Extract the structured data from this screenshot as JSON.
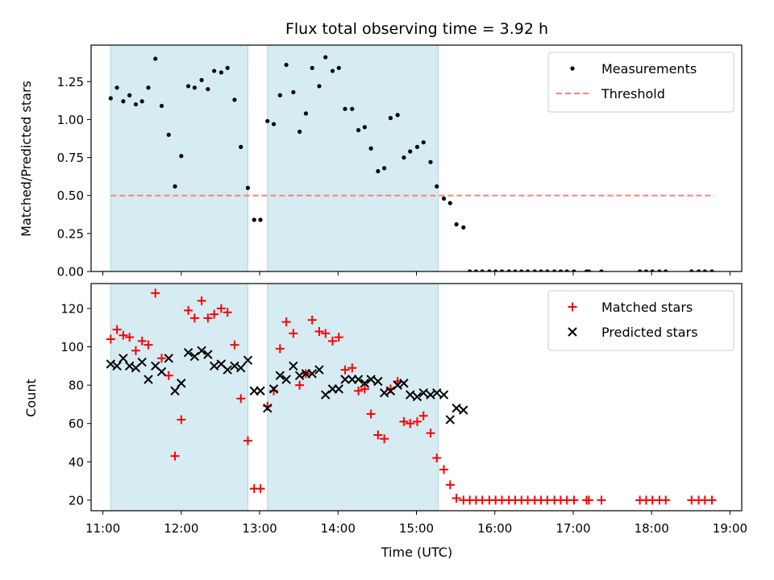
{
  "title": "Flux total observing time = 3.92 h",
  "xlabel": "Time (UTC)",
  "x_ticks": [
    "11:00",
    "12:00",
    "13:00",
    "14:00",
    "15:00",
    "16:00",
    "17:00",
    "18:00",
    "19:00"
  ],
  "chart_data": [
    {
      "type": "scatter",
      "ylabel": "Matched/Predicted stars",
      "xlim": [
        10.85,
        19.15
      ],
      "ylim": [
        0.0,
        1.49
      ],
      "y_ticks": [
        "0.00",
        "0.25",
        "0.50",
        "0.75",
        "1.00",
        "1.25"
      ],
      "grid": false,
      "legend_position": "top-right",
      "highlight_spans": [
        [
          11.1,
          12.85
        ],
        [
          13.1,
          15.28
        ]
      ],
      "threshold": {
        "name": "Threshold",
        "value": 0.5,
        "x_range": [
          11.1,
          18.8
        ],
        "color": "#ff7f7f"
      },
      "series": [
        {
          "name": "Measurements",
          "color": "#000000",
          "x": [
            11.1,
            11.18,
            11.26,
            11.34,
            11.42,
            11.5,
            11.58,
            11.67,
            11.75,
            11.84,
            11.92,
            12.0,
            12.09,
            12.17,
            12.26,
            12.34,
            12.42,
            12.51,
            12.59,
            12.68,
            12.76,
            12.85,
            12.93,
            13.01,
            13.1,
            13.18,
            13.26,
            13.34,
            13.43,
            13.51,
            13.59,
            13.67,
            13.76,
            13.84,
            13.93,
            14.01,
            14.09,
            14.18,
            14.26,
            14.34,
            14.42,
            14.51,
            14.59,
            14.67,
            14.76,
            14.84,
            14.92,
            15.01,
            15.09,
            15.18,
            15.26,
            15.35,
            15.43,
            15.51,
            15.6,
            15.68,
            15.76,
            15.84,
            15.93,
            16.01,
            16.09,
            16.18,
            16.26,
            16.34,
            16.42,
            16.51,
            16.59,
            16.67,
            16.76,
            16.84,
            16.92,
            17.01,
            17.17,
            17.2,
            17.36,
            17.85,
            17.93,
            18.01,
            18.1,
            18.18,
            18.51,
            18.6,
            18.68,
            18.77
          ],
          "y": [
            1.14,
            1.21,
            1.12,
            1.16,
            1.1,
            1.12,
            1.21,
            1.4,
            1.09,
            0.9,
            0.56,
            0.76,
            1.22,
            1.21,
            1.26,
            1.2,
            1.32,
            1.31,
            1.34,
            1.13,
            0.82,
            0.55,
            0.34,
            0.34,
            0.99,
            0.97,
            1.16,
            1.36,
            1.18,
            0.92,
            1.04,
            1.34,
            1.22,
            1.41,
            1.32,
            1.34,
            1.07,
            1.07,
            0.93,
            0.95,
            0.81,
            0.66,
            0.68,
            1.01,
            1.03,
            0.75,
            0.79,
            0.82,
            0.85,
            0.72,
            0.56,
            0.48,
            0.45,
            0.31,
            0.29,
            0,
            0,
            0,
            0,
            0,
            0,
            0,
            0,
            0,
            0,
            0,
            0,
            0,
            0,
            0,
            0,
            0,
            0,
            0,
            0,
            0,
            0,
            0,
            0,
            0,
            0,
            0,
            0,
            0
          ]
        }
      ]
    },
    {
      "type": "scatter",
      "ylabel": "Count",
      "xlabel": "Time (UTC)",
      "xlim": [
        10.85,
        19.15
      ],
      "ylim": [
        14.5,
        133
      ],
      "y_ticks": [
        "20",
        "40",
        "60",
        "80",
        "100",
        "120"
      ],
      "grid": false,
      "legend_position": "top-right",
      "highlight_spans": [
        [
          11.1,
          12.85
        ],
        [
          13.1,
          15.28
        ]
      ],
      "series": [
        {
          "name": "Matched stars",
          "color": "#ff0000",
          "marker": "+",
          "x": [
            11.1,
            11.18,
            11.26,
            11.34,
            11.42,
            11.5,
            11.58,
            11.67,
            11.75,
            11.84,
            11.92,
            12.0,
            12.09,
            12.17,
            12.26,
            12.34,
            12.42,
            12.51,
            12.59,
            12.68,
            12.76,
            12.85,
            12.93,
            13.01,
            13.1,
            13.18,
            13.26,
            13.34,
            13.43,
            13.51,
            13.59,
            13.67,
            13.76,
            13.84,
            13.93,
            14.01,
            14.09,
            14.18,
            14.26,
            14.34,
            14.42,
            14.51,
            14.59,
            14.67,
            14.76,
            14.84,
            14.92,
            15.01,
            15.09,
            15.18,
            15.26,
            15.35,
            15.43,
            15.51,
            15.6,
            15.68,
            15.76,
            15.84,
            15.93,
            16.01,
            16.09,
            16.18,
            16.26,
            16.34,
            16.42,
            16.51,
            16.59,
            16.67,
            16.76,
            16.84,
            16.92,
            17.01,
            17.17,
            17.2,
            17.36,
            17.85,
            17.93,
            18.01,
            18.1,
            18.18,
            18.51,
            18.6,
            18.68,
            18.77
          ],
          "y": [
            104,
            109,
            106,
            105,
            98,
            103,
            101,
            128,
            94,
            85,
            43,
            62,
            119,
            115,
            124,
            115,
            117,
            120,
            118,
            101,
            73,
            51,
            26,
            26,
            69,
            77,
            99,
            113,
            107,
            80,
            86,
            114,
            108,
            107,
            103,
            105,
            88,
            89,
            77,
            78,
            65,
            54,
            52,
            78,
            82,
            61,
            60,
            61,
            64,
            55,
            42,
            36,
            28,
            21,
            20,
            20,
            20,
            20,
            20,
            20,
            20,
            20,
            20,
            20,
            20,
            20,
            20,
            20,
            20,
            20,
            20,
            20,
            20,
            20,
            20,
            20,
            20,
            20,
            20,
            20,
            20,
            20,
            20,
            20
          ]
        },
        {
          "name": "Predicted stars",
          "color": "#000000",
          "marker": "x",
          "x": [
            11.1,
            11.18,
            11.26,
            11.34,
            11.42,
            11.5,
            11.58,
            11.67,
            11.75,
            11.84,
            11.92,
            12.0,
            12.09,
            12.17,
            12.26,
            12.34,
            12.42,
            12.51,
            12.59,
            12.68,
            12.76,
            12.85,
            12.93,
            13.01,
            13.1,
            13.18,
            13.26,
            13.34,
            13.43,
            13.51,
            13.59,
            13.67,
            13.76,
            13.84,
            13.93,
            14.01,
            14.09,
            14.18,
            14.26,
            14.34,
            14.42,
            14.51,
            14.59,
            14.67,
            14.76,
            14.84,
            14.92,
            15.01,
            15.09,
            15.18,
            15.26,
            15.35,
            15.43,
            15.51,
            15.6
          ],
          "y": [
            91,
            90,
            94,
            90,
            89,
            92,
            83,
            90,
            87,
            94,
            77,
            81,
            97,
            95,
            98,
            96,
            90,
            91,
            88,
            90,
            89,
            93,
            77,
            77,
            68,
            78,
            85,
            83,
            90,
            85,
            86,
            86,
            88,
            75,
            78,
            78,
            83,
            83,
            83,
            81,
            83,
            82,
            76,
            77,
            80,
            81,
            75,
            74,
            76,
            75,
            76,
            75,
            62,
            68,
            67
          ]
        }
      ]
    }
  ]
}
